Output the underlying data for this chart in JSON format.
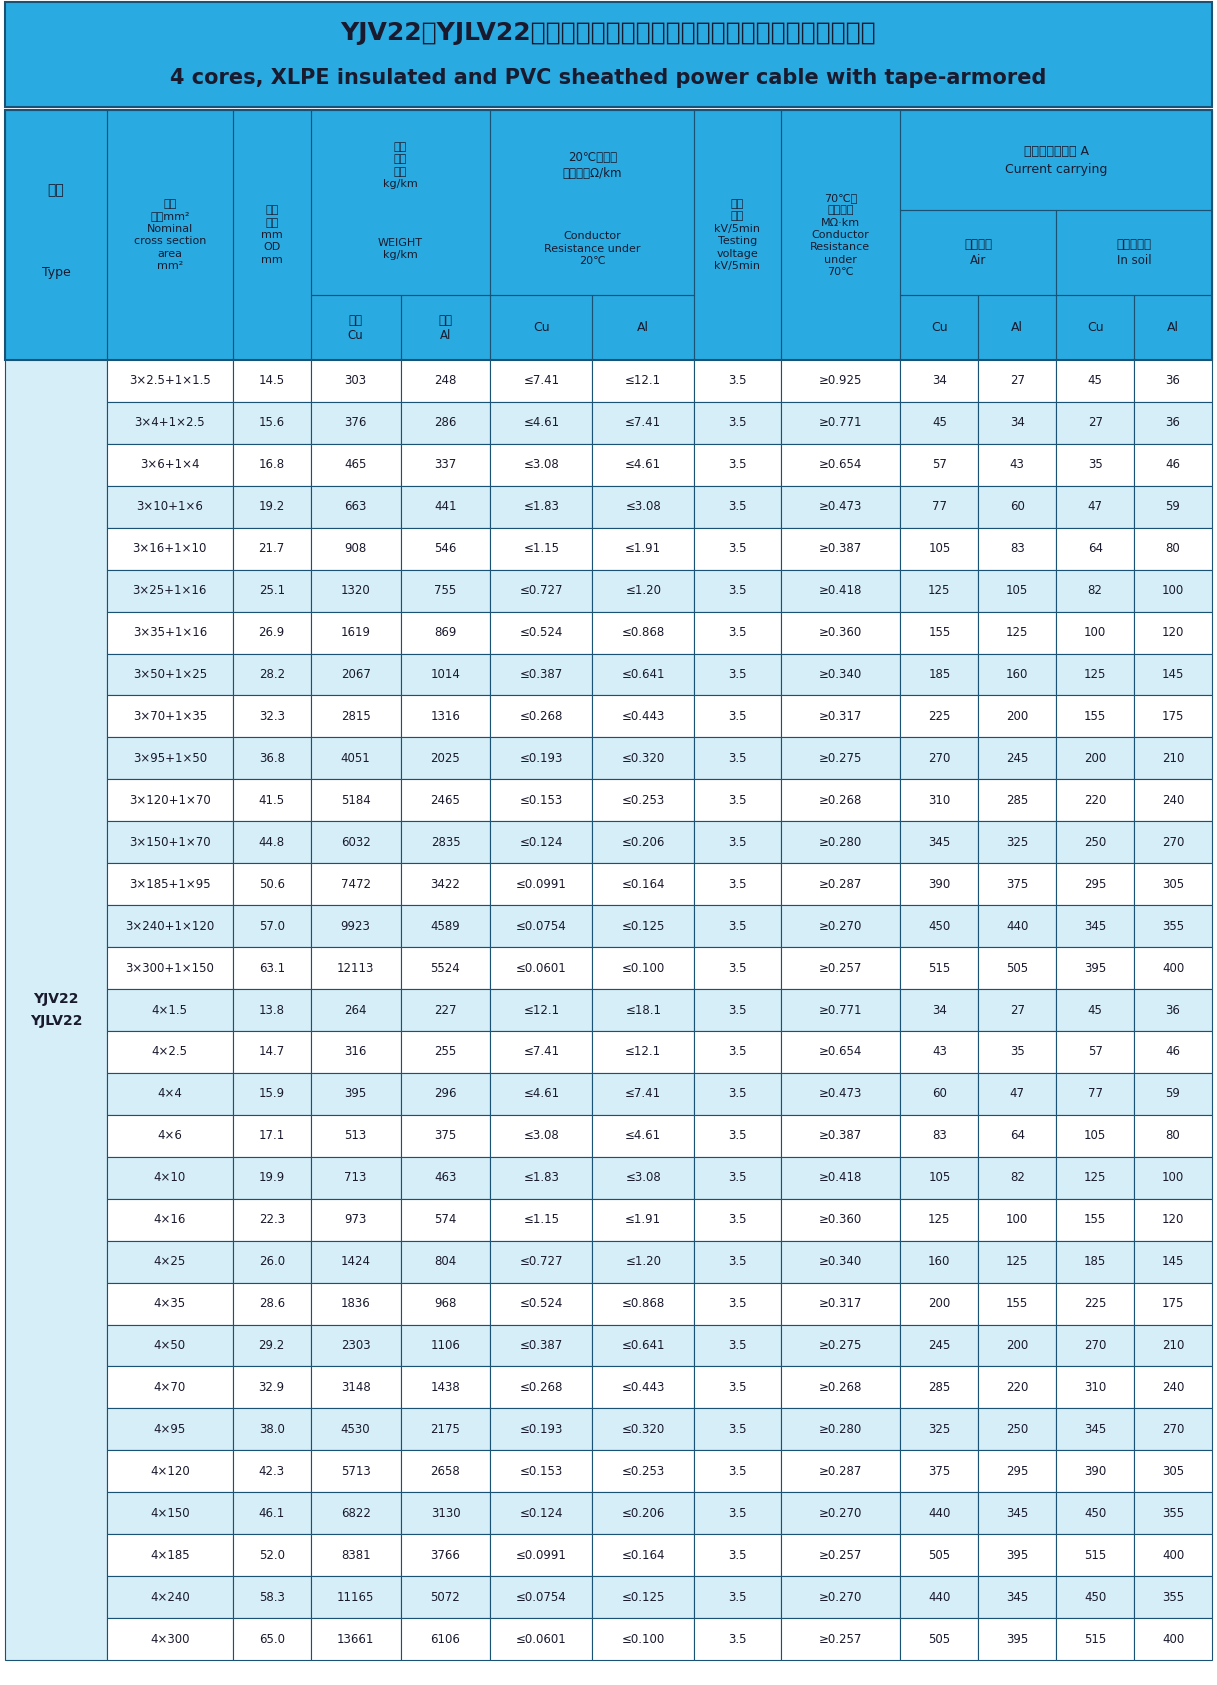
{
  "title_cn": "YJV22、YJLV22四芯交联聚乙烯绝缘钢带铠装聚氯乙烯护套电力电缆",
  "title_en": "4 cores, XLPE insulated and PVC sheathed power cable with tape-armored",
  "header_bg": "#29ABE2",
  "header_text": "#1a1a2e",
  "row_bg_light": "#FFFFFF",
  "row_bg_dark": "#D6EEF8",
  "border_color": "#1a5276",
  "type_label": "YJV22\nYJLV22",
  "col_headers": {
    "type": [
      "型号",
      "Type"
    ],
    "section": [
      "标称",
      "截面mm²",
      "Nominal",
      "cross section",
      "area",
      "mm²"
    ],
    "od": [
      "参考",
      "外径",
      "mm",
      "OD",
      "mm"
    ],
    "weight_title": [
      "电缆",
      "参考",
      "重量",
      "kg/km",
      "WEIGHT",
      "kg/km"
    ],
    "weight_cu": [
      "铜芯",
      "Cu"
    ],
    "weight_al": [
      "铝芯",
      "Al"
    ],
    "resist_title": [
      "20℃时导体",
      "直流电阻Ω/km",
      "Conductor",
      "Resistance under",
      "20℃"
    ],
    "resist_cu": [
      "Cu"
    ],
    "resist_al": [
      "Al"
    ],
    "voltage": [
      "试验",
      "电压",
      "kV/5min",
      "Testing",
      "voltage",
      "kV/5min"
    ],
    "insul_title": [
      "70℃时",
      "绝缘电阻",
      "MΩ·km",
      "Conductor",
      "Resistance",
      "under",
      "70℃"
    ],
    "current_title": [
      "电缆参考载流量 A",
      "Current carrying"
    ],
    "air_title": [
      "在空气中",
      "Air"
    ],
    "soil_title": [
      "直埋土壤中",
      "In soil"
    ],
    "air_cu": [
      "Cu"
    ],
    "air_al": [
      "Al"
    ],
    "soil_cu": [
      "Cu"
    ],
    "soil_al": [
      "Al"
    ]
  },
  "rows": [
    [
      "3×2.5+1×1.5",
      "14.5",
      "303",
      "248",
      "≤7.41",
      "≤12.1",
      "3.5",
      "≥0.925",
      "34",
      "27",
      "45",
      "36"
    ],
    [
      "3×4+1×2.5",
      "15.6",
      "376",
      "286",
      "≤4.61",
      "≤7.41",
      "3.5",
      "≥0.771",
      "45",
      "34",
      "27",
      "36"
    ],
    [
      "3×6+1×4",
      "16.8",
      "465",
      "337",
      "≤3.08",
      "≤4.61",
      "3.5",
      "≥0.654",
      "57",
      "43",
      "35",
      "46"
    ],
    [
      "3×10+1×6",
      "19.2",
      "663",
      "441",
      "≤1.83",
      "≤3.08",
      "3.5",
      "≥0.473",
      "77",
      "60",
      "47",
      "59"
    ],
    [
      "3×16+1×10",
      "21.7",
      "908",
      "546",
      "≤1.15",
      "≤1.91",
      "3.5",
      "≥0.387",
      "105",
      "83",
      "64",
      "80"
    ],
    [
      "3×25+1×16",
      "25.1",
      "1320",
      "755",
      "≤0.727",
      "≤1.20",
      "3.5",
      "≥0.418",
      "125",
      "105",
      "82",
      "100"
    ],
    [
      "3×35+1×16",
      "26.9",
      "1619",
      "869",
      "≤0.524",
      "≤0.868",
      "3.5",
      "≥0.360",
      "155",
      "125",
      "100",
      "120"
    ],
    [
      "3×50+1×25",
      "28.2",
      "2067",
      "1014",
      "≤0.387",
      "≤0.641",
      "3.5",
      "≥0.340",
      "185",
      "160",
      "125",
      "145"
    ],
    [
      "3×70+1×35",
      "32.3",
      "2815",
      "1316",
      "≤0.268",
      "≤0.443",
      "3.5",
      "≥0.317",
      "225",
      "200",
      "155",
      "175"
    ],
    [
      "3×95+1×50",
      "36.8",
      "4051",
      "2025",
      "≤0.193",
      "≤0.320",
      "3.5",
      "≥0.275",
      "270",
      "245",
      "200",
      "210"
    ],
    [
      "3×120+1×70",
      "41.5",
      "5184",
      "2465",
      "≤0.153",
      "≤0.253",
      "3.5",
      "≥0.268",
      "310",
      "285",
      "220",
      "240"
    ],
    [
      "3×150+1×70",
      "44.8",
      "6032",
      "2835",
      "≤0.124",
      "≤0.206",
      "3.5",
      "≥0.280",
      "345",
      "325",
      "250",
      "270"
    ],
    [
      "3×185+1×95",
      "50.6",
      "7472",
      "3422",
      "≤0.0991",
      "≤0.164",
      "3.5",
      "≥0.287",
      "390",
      "375",
      "295",
      "305"
    ],
    [
      "3×240+1×120",
      "57.0",
      "9923",
      "4589",
      "≤0.0754",
      "≤0.125",
      "3.5",
      "≥0.270",
      "450",
      "440",
      "345",
      "355"
    ],
    [
      "3×300+1×150",
      "63.1",
      "12113",
      "5524",
      "≤0.0601",
      "≤0.100",
      "3.5",
      "≥0.257",
      "515",
      "505",
      "395",
      "400"
    ],
    [
      "4×1.5",
      "13.8",
      "264",
      "227",
      "≤12.1",
      "≤18.1",
      "3.5",
      "≥0.771",
      "34",
      "27",
      "45",
      "36"
    ],
    [
      "4×2.5",
      "14.7",
      "316",
      "255",
      "≤7.41",
      "≤12.1",
      "3.5",
      "≥0.654",
      "43",
      "35",
      "57",
      "46"
    ],
    [
      "4×4",
      "15.9",
      "395",
      "296",
      "≤4.61",
      "≤7.41",
      "3.5",
      "≥0.473",
      "60",
      "47",
      "77",
      "59"
    ],
    [
      "4×6",
      "17.1",
      "513",
      "375",
      "≤3.08",
      "≤4.61",
      "3.5",
      "≥0.387",
      "83",
      "64",
      "105",
      "80"
    ],
    [
      "4×10",
      "19.9",
      "713",
      "463",
      "≤1.83",
      "≤3.08",
      "3.5",
      "≥0.418",
      "105",
      "82",
      "125",
      "100"
    ],
    [
      "4×16",
      "22.3",
      "973",
      "574",
      "≤1.15",
      "≤1.91",
      "3.5",
      "≥0.360",
      "125",
      "100",
      "155",
      "120"
    ],
    [
      "4×25",
      "26.0",
      "1424",
      "804",
      "≤0.727",
      "≤1.20",
      "3.5",
      "≥0.340",
      "160",
      "125",
      "185",
      "145"
    ],
    [
      "4×35",
      "28.6",
      "1836",
      "968",
      "≤0.524",
      "≤0.868",
      "3.5",
      "≥0.317",
      "200",
      "155",
      "225",
      "175"
    ],
    [
      "4×50",
      "29.2",
      "2303",
      "1106",
      "≤0.387",
      "≤0.641",
      "3.5",
      "≥0.275",
      "245",
      "200",
      "270",
      "210"
    ],
    [
      "4×70",
      "32.9",
      "3148",
      "1438",
      "≤0.268",
      "≤0.443",
      "3.5",
      "≥0.268",
      "285",
      "220",
      "310",
      "240"
    ],
    [
      "4×95",
      "38.0",
      "4530",
      "2175",
      "≤0.193",
      "≤0.320",
      "3.5",
      "≥0.280",
      "325",
      "250",
      "345",
      "270"
    ],
    [
      "4×120",
      "42.3",
      "5713",
      "2658",
      "≤0.153",
      "≤0.253",
      "3.5",
      "≥0.287",
      "375",
      "295",
      "390",
      "305"
    ],
    [
      "4×150",
      "46.1",
      "6822",
      "3130",
      "≤0.124",
      "≤0.206",
      "3.5",
      "≥0.270",
      "440",
      "345",
      "450",
      "355"
    ],
    [
      "4×185",
      "52.0",
      "8381",
      "3766",
      "≤0.0991",
      "≤0.164",
      "3.5",
      "≥0.257",
      "505",
      "395",
      "515",
      "400"
    ],
    [
      "4×240",
      "58.3",
      "11165",
      "5072",
      "≤0.0754",
      "≤0.125",
      "3.5",
      "≥0.270",
      "440",
      "345",
      "450",
      "355"
    ],
    [
      "4×300",
      "65.0",
      "13661",
      "6106",
      "≤0.0601",
      "≤0.100",
      "3.5",
      "≥0.257",
      "505",
      "395",
      "515",
      "400"
    ]
  ]
}
